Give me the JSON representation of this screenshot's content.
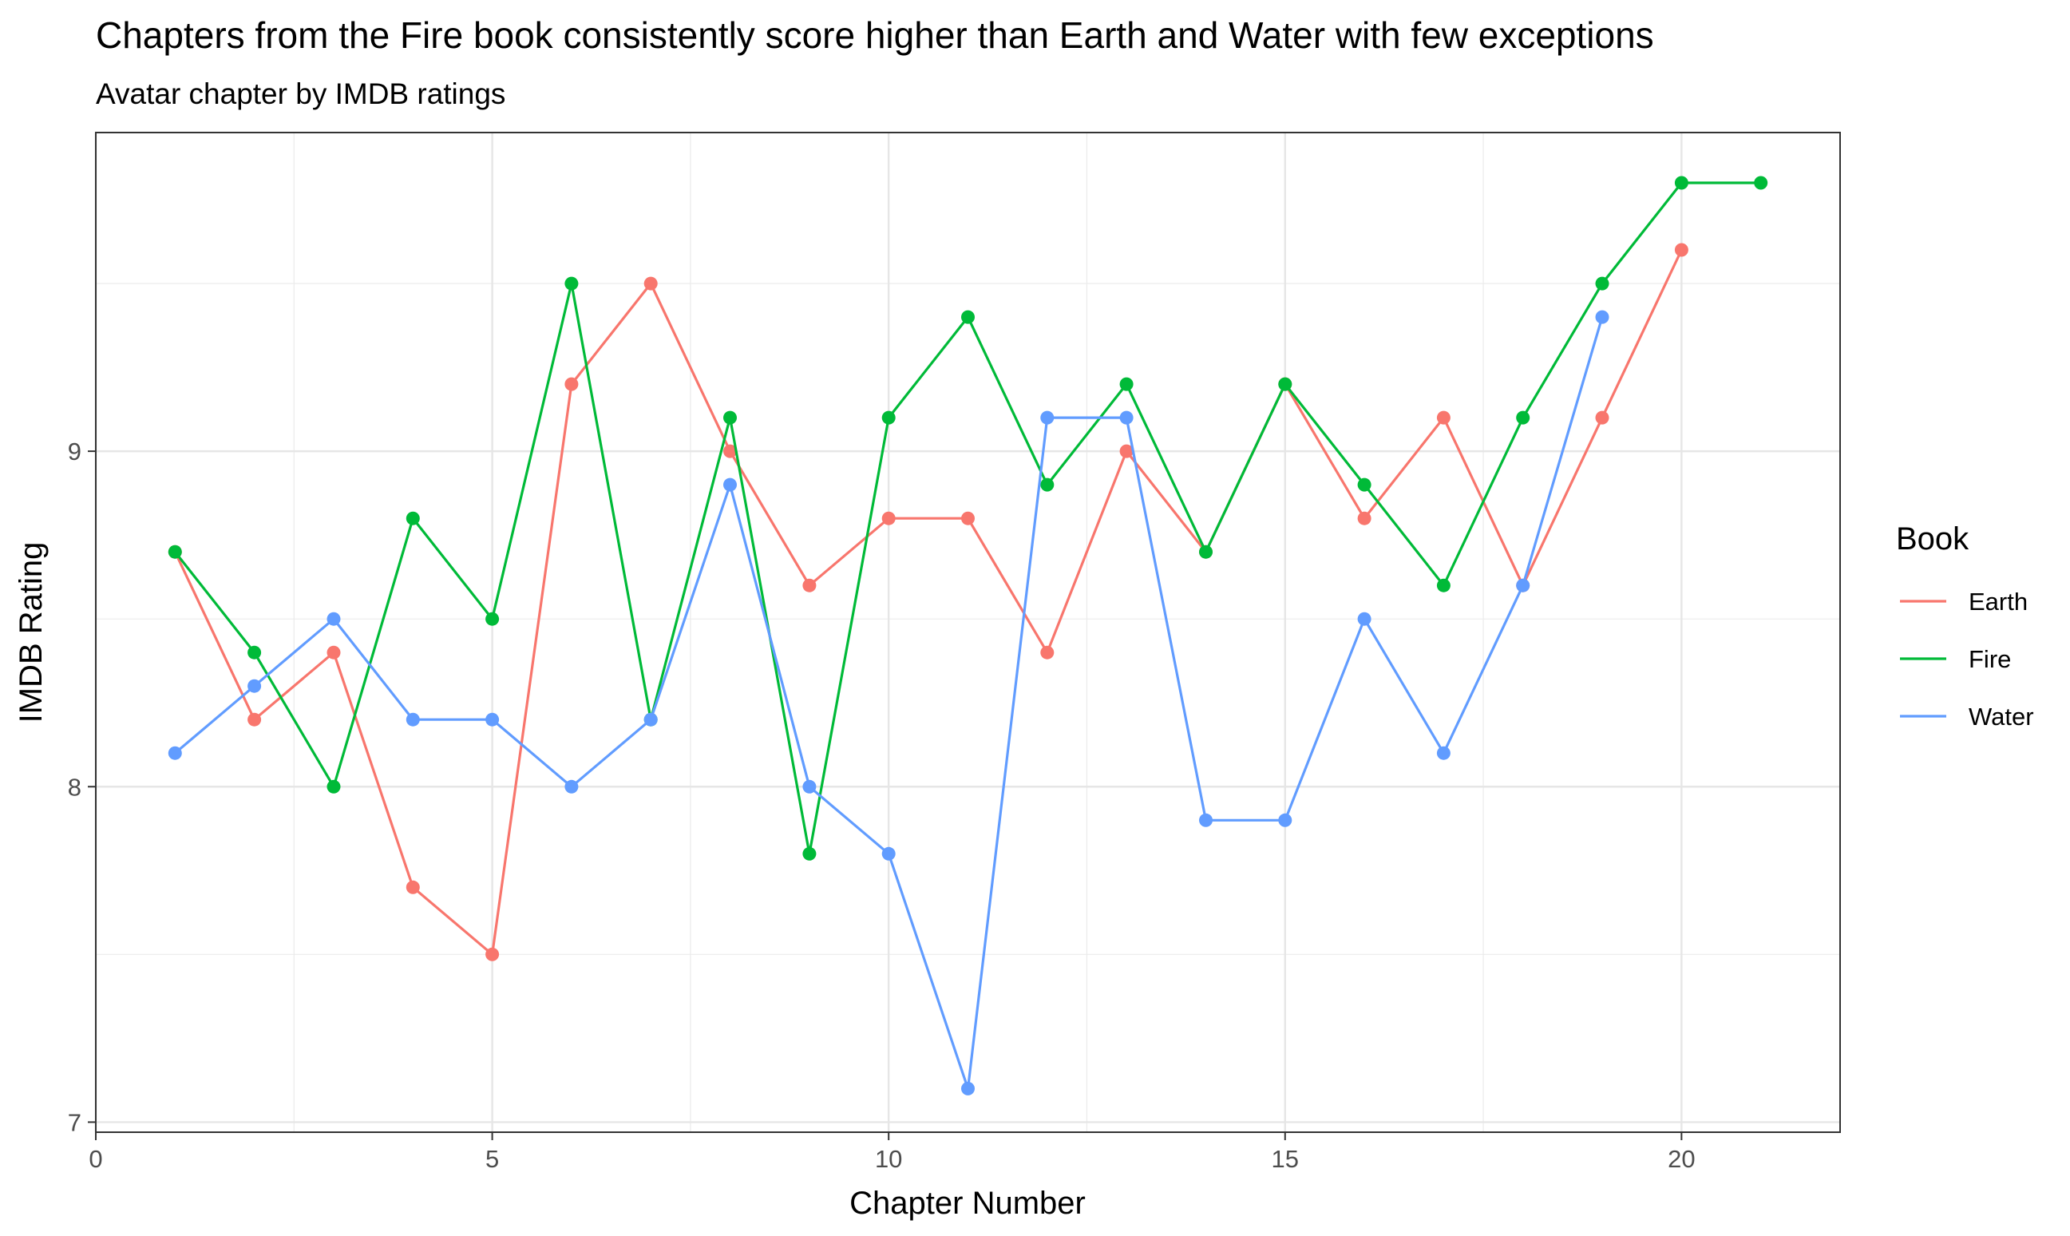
{
  "chart_data": {
    "type": "line",
    "title": "Chapters from the Fire book consistently score higher than Earth and Water with few exceptions",
    "subtitle": "Avatar chapter by IMDB ratings",
    "xlabel": "Chapter Number",
    "ylabel": "IMDB Rating",
    "xlim": [
      0,
      22
    ],
    "ylim": [
      6.97,
      9.95
    ],
    "x_ticks": [
      0,
      5,
      10,
      15,
      20
    ],
    "y_ticks": [
      7,
      8,
      9
    ],
    "grid": true,
    "legend": {
      "title": "Book",
      "position": "right",
      "entries": [
        "Earth",
        "Fire",
        "Water"
      ]
    },
    "series": [
      {
        "name": "Earth",
        "color": "#F8766D",
        "points": [
          [
            1,
            8.7
          ],
          [
            2,
            8.2
          ],
          [
            3,
            8.4
          ],
          [
            4,
            7.7
          ],
          [
            5,
            7.5
          ],
          [
            6,
            9.2
          ],
          [
            7,
            9.5
          ],
          [
            8,
            9.0
          ],
          [
            9,
            8.6
          ],
          [
            10,
            8.8
          ],
          [
            11,
            8.8
          ],
          [
            12,
            8.4
          ],
          [
            13,
            9.0
          ],
          [
            14,
            8.7
          ],
          [
            15,
            9.2
          ],
          [
            16,
            8.8
          ],
          [
            17,
            9.1
          ],
          [
            18,
            8.6
          ],
          [
            19,
            9.1
          ],
          [
            20,
            9.6
          ]
        ]
      },
      {
        "name": "Fire",
        "color": "#00BA38",
        "points": [
          [
            1,
            8.7
          ],
          [
            2,
            8.4
          ],
          [
            3,
            8.0
          ],
          [
            4,
            8.8
          ],
          [
            5,
            8.5
          ],
          [
            6,
            9.5
          ],
          [
            7,
            8.2
          ],
          [
            8,
            9.1
          ],
          [
            9,
            7.8
          ],
          [
            10,
            9.1
          ],
          [
            11,
            9.4
          ],
          [
            12,
            8.9
          ],
          [
            13,
            9.2
          ],
          [
            14,
            8.7
          ],
          [
            15,
            9.2
          ],
          [
            16,
            8.9
          ],
          [
            17,
            8.6
          ],
          [
            18,
            9.1
          ],
          [
            19,
            9.5
          ],
          [
            20,
            9.8
          ],
          [
            21,
            9.8
          ]
        ]
      },
      {
        "name": "Water",
        "color": "#619CFF",
        "points": [
          [
            1,
            8.1
          ],
          [
            2,
            8.3
          ],
          [
            3,
            8.5
          ],
          [
            4,
            8.2
          ],
          [
            5,
            8.2
          ],
          [
            6,
            8.0
          ],
          [
            7,
            8.2
          ],
          [
            8,
            8.9
          ],
          [
            9,
            8.0
          ],
          [
            10,
            7.8
          ],
          [
            11,
            7.1
          ],
          [
            12,
            9.1
          ],
          [
            13,
            9.1
          ],
          [
            14,
            7.9
          ],
          [
            15,
            7.9
          ],
          [
            16,
            8.5
          ],
          [
            17,
            8.1
          ],
          [
            18,
            8.6
          ],
          [
            19,
            9.4
          ]
        ]
      }
    ]
  }
}
